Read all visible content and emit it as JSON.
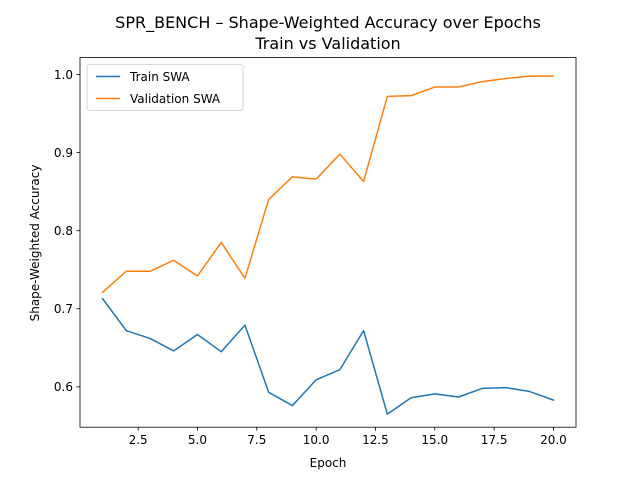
{
  "chart_data": {
    "type": "line",
    "title": "SPR_BENCH – Shape-Weighted Accuracy over Epochs",
    "subtitle": "Train vs Validation",
    "xlabel": "Epoch",
    "ylabel": "Shape-Weighted Accuracy",
    "xlim": [
      0.05,
      20.95
    ],
    "ylim": [
      0.5483,
      1.0217
    ],
    "xticks": [
      2.5,
      5.0,
      7.5,
      10.0,
      12.5,
      15.0,
      17.5,
      20.0
    ],
    "xtick_labels": [
      "2.5",
      "5.0",
      "7.5",
      "10.0",
      "12.5",
      "15.0",
      "17.5",
      "20.0"
    ],
    "yticks": [
      0.6,
      0.7,
      0.8,
      0.9,
      1.0
    ],
    "ytick_labels": [
      "0.6",
      "0.7",
      "0.8",
      "0.9",
      "1.0"
    ],
    "grid": false,
    "legend_position": "top-left",
    "x": [
      1,
      2,
      3,
      4,
      5,
      6,
      7,
      8,
      9,
      10,
      11,
      12,
      13,
      14,
      15,
      16,
      17,
      18,
      19,
      20
    ],
    "series": [
      {
        "name": "Train SWA",
        "color": "#1f77b4",
        "values": [
          0.713,
          0.672,
          0.662,
          0.646,
          0.667,
          0.645,
          0.679,
          0.593,
          0.576,
          0.609,
          0.622,
          0.672,
          0.565,
          0.586,
          0.591,
          0.587,
          0.598,
          0.599,
          0.594,
          0.583
        ]
      },
      {
        "name": "Validation SWA",
        "color": "#ff7f0e",
        "values": [
          0.721,
          0.748,
          0.748,
          0.762,
          0.742,
          0.785,
          0.739,
          0.84,
          0.869,
          0.866,
          0.898,
          0.863,
          0.972,
          0.973,
          0.984,
          0.984,
          0.991,
          0.995,
          0.998,
          0.998
        ]
      }
    ]
  }
}
